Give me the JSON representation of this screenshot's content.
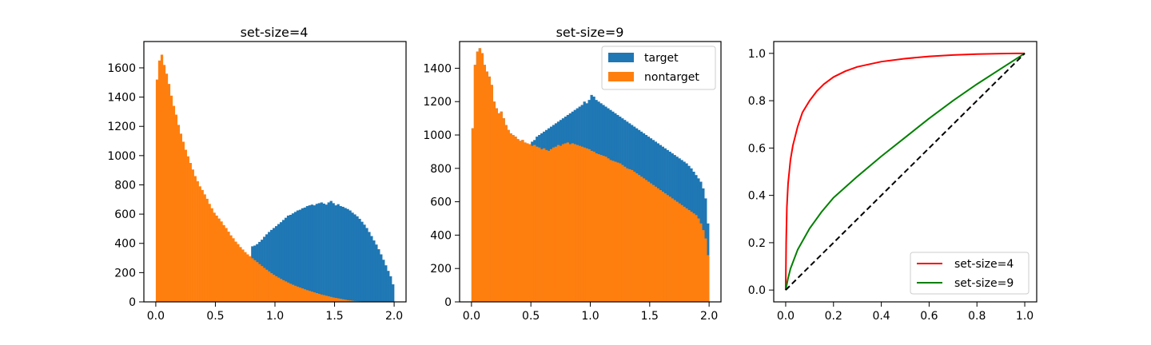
{
  "chart_data": [
    {
      "type": "bar",
      "title": "set-size=4",
      "xlabel": "",
      "ylabel": "",
      "xlim": [
        -0.1,
        2.1
      ],
      "ylim": [
        0,
        1780
      ],
      "xticks": [
        0.0,
        0.5,
        1.0,
        1.5,
        2.0
      ],
      "xtick_labels": [
        "0.0",
        "0.5",
        "1.0",
        "1.5",
        "2.0"
      ],
      "yticks": [
        0,
        200,
        400,
        600,
        800,
        1000,
        1200,
        1400,
        1600
      ],
      "ytick_labels": [
        "0",
        "200",
        "400",
        "600",
        "800",
        "1000",
        "1200",
        "1400",
        "1600"
      ],
      "bin_range": [
        0,
        2
      ],
      "bins": 100,
      "series": [
        {
          "name": "target",
          "color": "#1f77b4",
          "values": [
            0,
            0,
            0,
            0,
            0,
            0,
            0,
            0,
            0,
            0,
            0,
            0,
            0,
            0,
            0,
            0,
            0,
            0,
            0,
            0,
            0,
            0,
            0,
            0,
            0,
            0,
            0,
            0,
            0,
            0,
            0,
            0,
            0,
            0,
            0,
            0,
            0,
            0,
            0,
            2,
            380,
            385,
            395,
            410,
            425,
            445,
            462,
            478,
            492,
            505,
            518,
            532,
            545,
            560,
            575,
            590,
            595,
            605,
            615,
            625,
            630,
            640,
            645,
            655,
            660,
            665,
            660,
            670,
            675,
            680,
            672,
            665,
            680,
            690,
            675,
            660,
            668,
            655,
            650,
            642,
            635,
            625,
            610,
            598,
            585,
            568,
            548,
            528,
            505,
            478,
            450,
            420,
            392,
            360,
            325,
            288,
            250,
            212,
            175,
            120
          ]
        },
        {
          "name": "nontarget",
          "color": "#ff7f0e",
          "values": [
            1520,
            1650,
            1690,
            1620,
            1560,
            1490,
            1410,
            1340,
            1280,
            1210,
            1150,
            1095,
            1040,
            995,
            950,
            905,
            860,
            825,
            790,
            765,
            735,
            705,
            670,
            640,
            610,
            590,
            570,
            550,
            525,
            505,
            480,
            455,
            435,
            412,
            395,
            375,
            358,
            340,
            325,
            312,
            298,
            285,
            272,
            258,
            245,
            232,
            220,
            208,
            196,
            185,
            175,
            166,
            157,
            148,
            140,
            132,
            124,
            117,
            110,
            104,
            98,
            92,
            86,
            80,
            75,
            70,
            65,
            60,
            55,
            50,
            46,
            42,
            38,
            34,
            30,
            27,
            24,
            21,
            18,
            15,
            12,
            10,
            8,
            6,
            5,
            4,
            3,
            2,
            2,
            1,
            1,
            1,
            0,
            0,
            0,
            0,
            0,
            0,
            0,
            0
          ]
        }
      ]
    },
    {
      "type": "bar",
      "title": "set-size=9",
      "xlabel": "",
      "ylabel": "",
      "xlim": [
        -0.1,
        2.1
      ],
      "ylim": [
        0,
        1560
      ],
      "xticks": [
        0.0,
        0.5,
        1.0,
        1.5,
        2.0
      ],
      "xtick_labels": [
        "0.0",
        "0.5",
        "1.0",
        "1.5",
        "2.0"
      ],
      "yticks": [
        0,
        200,
        400,
        600,
        800,
        1000,
        1200,
        1400
      ],
      "ytick_labels": [
        "0",
        "200",
        "400",
        "600",
        "800",
        "1000",
        "1200",
        "1400"
      ],
      "bin_range": [
        0,
        2
      ],
      "bins": 100,
      "legend": {
        "placement": "top-right",
        "entries": [
          "target",
          "nontarget"
        ]
      },
      "series": [
        {
          "name": "target",
          "color": "#1f77b4",
          "values": [
            1040,
            1420,
            1500,
            1520,
            1490,
            1420,
            1380,
            1350,
            1300,
            1200,
            1160,
            1130,
            1140,
            1100,
            1060,
            1030,
            1010,
            1000,
            990,
            975,
            965,
            970,
            955,
            950,
            945,
            960,
            970,
            990,
            1000,
            1010,
            1020,
            1030,
            1040,
            1050,
            1060,
            1070,
            1080,
            1090,
            1100,
            1110,
            1120,
            1130,
            1140,
            1150,
            1160,
            1170,
            1180,
            1200,
            1190,
            1210,
            1240,
            1230,
            1210,
            1200,
            1190,
            1180,
            1170,
            1160,
            1150,
            1140,
            1130,
            1120,
            1110,
            1100,
            1090,
            1080,
            1070,
            1060,
            1050,
            1040,
            1030,
            1020,
            1010,
            1000,
            990,
            980,
            970,
            960,
            950,
            940,
            930,
            920,
            910,
            900,
            890,
            880,
            870,
            860,
            850,
            840,
            830,
            815,
            800,
            780,
            760,
            740,
            720,
            680,
            620,
            470
          ]
        },
        {
          "name": "nontarget",
          "color": "#ff7f0e",
          "values": [
            1040,
            1420,
            1500,
            1520,
            1490,
            1420,
            1380,
            1350,
            1300,
            1200,
            1160,
            1130,
            1140,
            1100,
            1060,
            1030,
            1010,
            1000,
            990,
            975,
            965,
            970,
            955,
            950,
            945,
            935,
            940,
            930,
            925,
            915,
            920,
            910,
            905,
            915,
            925,
            930,
            940,
            935,
            945,
            950,
            955,
            945,
            950,
            945,
            940,
            935,
            930,
            925,
            920,
            915,
            905,
            900,
            890,
            885,
            880,
            875,
            870,
            860,
            850,
            845,
            840,
            835,
            830,
            820,
            810,
            800,
            795,
            790,
            780,
            770,
            760,
            750,
            740,
            730,
            720,
            710,
            700,
            690,
            680,
            670,
            660,
            650,
            640,
            630,
            620,
            610,
            600,
            590,
            580,
            570,
            560,
            550,
            540,
            530,
            520,
            500,
            470,
            430,
            380,
            280
          ]
        }
      ]
    },
    {
      "type": "line",
      "title": "",
      "xlabel": "",
      "ylabel": "",
      "xlim": [
        -0.05,
        1.05
      ],
      "ylim": [
        -0.05,
        1.05
      ],
      "xticks": [
        0.0,
        0.2,
        0.4,
        0.6,
        0.8,
        1.0
      ],
      "xtick_labels": [
        "0.0",
        "0.2",
        "0.4",
        "0.6",
        "0.8",
        "1.0"
      ],
      "yticks": [
        0.0,
        0.2,
        0.4,
        0.6,
        0.8,
        1.0
      ],
      "ytick_labels": [
        "0.0",
        "0.2",
        "0.4",
        "0.6",
        "0.8",
        "1.0"
      ],
      "legend": {
        "placement": "bottom-right",
        "entries": [
          "set-size=4",
          "set-size=9"
        ]
      },
      "series": [
        {
          "name": "set-size=4",
          "color": "#ff0000",
          "style": "solid",
          "x": [
            0.0,
            0.002,
            0.005,
            0.01,
            0.02,
            0.03,
            0.05,
            0.07,
            0.1,
            0.13,
            0.16,
            0.2,
            0.25,
            0.3,
            0.4,
            0.5,
            0.6,
            0.7,
            0.8,
            0.9,
            1.0
          ],
          "y": [
            0.0,
            0.2,
            0.35,
            0.45,
            0.55,
            0.61,
            0.69,
            0.75,
            0.8,
            0.84,
            0.87,
            0.9,
            0.925,
            0.943,
            0.965,
            0.978,
            0.987,
            0.993,
            0.997,
            0.999,
            1.0
          ]
        },
        {
          "name": "set-size=9",
          "color": "#008000",
          "style": "solid",
          "x": [
            0.0,
            0.01,
            0.02,
            0.05,
            0.1,
            0.15,
            0.2,
            0.3,
            0.4,
            0.5,
            0.6,
            0.7,
            0.8,
            0.9,
            1.0
          ],
          "y": [
            0.0,
            0.05,
            0.09,
            0.17,
            0.26,
            0.33,
            0.39,
            0.48,
            0.565,
            0.645,
            0.725,
            0.8,
            0.87,
            0.935,
            1.0
          ]
        },
        {
          "name": "",
          "color": "#000000",
          "style": "dashed",
          "x": [
            0.0,
            1.0
          ],
          "y": [
            0.0,
            1.0
          ]
        }
      ]
    }
  ]
}
